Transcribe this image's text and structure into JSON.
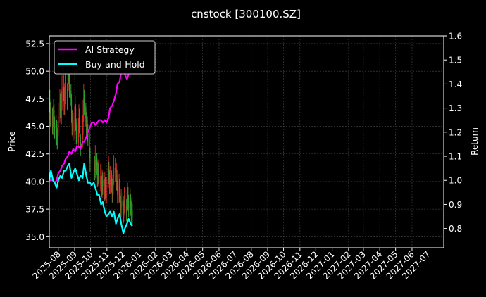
{
  "chart_data": {
    "type": "line",
    "title": "cnstock [300100.SZ]",
    "ylabel_left": "Price",
    "ylabel_right": "Return",
    "ylim_left": [
      34.0,
      53.2
    ],
    "ylim_right": [
      0.72,
      1.6
    ],
    "xlim": [
      "2025-07-15",
      "2027-07-31"
    ],
    "yticks_left": [
      "35.0",
      "37.5",
      "40.0",
      "42.5",
      "45.0",
      "47.5",
      "50.0",
      "52.5"
    ],
    "yticks_right": [
      "0.8",
      "0.9",
      "1.0",
      "1.1",
      "1.2",
      "1.3",
      "1.4",
      "1.5",
      "1.6"
    ],
    "xticks": [
      "2025-08",
      "2025-09",
      "2025-10",
      "2025-11",
      "2025-12",
      "2026-01",
      "2026-02",
      "2026-03",
      "2026-04",
      "2026-05",
      "2026-06",
      "2026-07",
      "2026-08",
      "2026-09",
      "2026-10",
      "2026-11",
      "2026-12",
      "2027-01",
      "2027-02",
      "2027-03",
      "2027-04",
      "2027-05",
      "2027-06",
      "2027-07"
    ],
    "grid": true,
    "legend_position": "top-left",
    "colors": {
      "strategy": "#ff00ff",
      "buyhold": "#00ffff",
      "candle_up": "#d62728",
      "candle_down": "#2ca02c",
      "background": "#000000",
      "grid": "#4a4a4a"
    },
    "series": [
      {
        "name": "AI Strategy",
        "axis": "right",
        "x": [
          "2025-07-15",
          "2025-07-18",
          "2025-07-22",
          "2025-07-25",
          "2025-07-29",
          "2025-08-01",
          "2025-08-05",
          "2025-08-08",
          "2025-08-12",
          "2025-08-15",
          "2025-08-19",
          "2025-08-22",
          "2025-08-26",
          "2025-08-29",
          "2025-09-02",
          "2025-09-05",
          "2025-09-09",
          "2025-09-12",
          "2025-09-16",
          "2025-09-19",
          "2025-09-23",
          "2025-09-26",
          "2025-09-30",
          "2025-10-03",
          "2025-10-07",
          "2025-10-10",
          "2025-10-14",
          "2025-10-17",
          "2025-10-21",
          "2025-10-24",
          "2025-10-28",
          "2025-10-31",
          "2025-11-04",
          "2025-11-07",
          "2025-11-11",
          "2025-11-14",
          "2025-11-18",
          "2025-11-21",
          "2025-11-25",
          "2025-11-28",
          "2025-12-02",
          "2025-12-05",
          "2025-12-09",
          "2025-12-12",
          "2025-12-16",
          "2025-12-19"
        ],
        "values": [
          1.0,
          1.0,
          1.0,
          0.99,
          1.0,
          1.03,
          1.04,
          1.06,
          1.07,
          1.09,
          1.1,
          1.12,
          1.11,
          1.13,
          1.12,
          1.14,
          1.14,
          1.13,
          1.16,
          1.16,
          1.18,
          1.2,
          1.22,
          1.24,
          1.24,
          1.23,
          1.24,
          1.25,
          1.25,
          1.24,
          1.25,
          1.24,
          1.26,
          1.3,
          1.31,
          1.33,
          1.36,
          1.4,
          1.41,
          1.45,
          1.46,
          1.44,
          1.42,
          1.44,
          1.48,
          1.53
        ]
      },
      {
        "name": "Buy-and-Hold",
        "axis": "right",
        "x": [
          "2025-07-15",
          "2025-07-18",
          "2025-07-22",
          "2025-07-25",
          "2025-07-29",
          "2025-08-01",
          "2025-08-05",
          "2025-08-08",
          "2025-08-12",
          "2025-08-15",
          "2025-08-19",
          "2025-08-22",
          "2025-08-26",
          "2025-08-29",
          "2025-09-02",
          "2025-09-05",
          "2025-09-09",
          "2025-09-12",
          "2025-09-16",
          "2025-09-19",
          "2025-09-23",
          "2025-09-26",
          "2025-09-30",
          "2025-10-03",
          "2025-10-07",
          "2025-10-10",
          "2025-10-14",
          "2025-10-17",
          "2025-10-21",
          "2025-10-24",
          "2025-10-28",
          "2025-10-31",
          "2025-11-04",
          "2025-11-07",
          "2025-11-11",
          "2025-11-14",
          "2025-11-18",
          "2025-11-21",
          "2025-11-25",
          "2025-11-28",
          "2025-12-02",
          "2025-12-05",
          "2025-12-09",
          "2025-12-12",
          "2025-12-16",
          "2025-12-19"
        ],
        "values": [
          1.0,
          1.04,
          1.0,
          0.99,
          0.97,
          1.0,
          1.02,
          1.01,
          1.04,
          1.04,
          1.06,
          1.07,
          1.01,
          1.03,
          1.05,
          1.03,
          1.0,
          1.02,
          1.01,
          1.07,
          1.02,
          0.99,
          0.99,
          0.98,
          0.99,
          0.97,
          0.94,
          0.94,
          0.9,
          0.91,
          0.87,
          0.85,
          0.86,
          0.87,
          0.85,
          0.87,
          0.82,
          0.84,
          0.86,
          0.82,
          0.78,
          0.8,
          0.82,
          0.84,
          0.82,
          0.81
        ]
      }
    ],
    "candles": {
      "axis": "left",
      "x": [
        "2025-07-15",
        "2025-07-16",
        "2025-07-17",
        "2025-07-18",
        "2025-07-21",
        "2025-07-22",
        "2025-07-23",
        "2025-07-24",
        "2025-07-25",
        "2025-07-28",
        "2025-07-29",
        "2025-07-30",
        "2025-07-31",
        "2025-08-01",
        "2025-08-04",
        "2025-08-05",
        "2025-08-06",
        "2025-08-07",
        "2025-08-08",
        "2025-08-11",
        "2025-08-12",
        "2025-08-13",
        "2025-08-14",
        "2025-08-15",
        "2025-08-18",
        "2025-08-19",
        "2025-08-20",
        "2025-08-21",
        "2025-08-22",
        "2025-08-25",
        "2025-08-26",
        "2025-08-27",
        "2025-08-28",
        "2025-08-29",
        "2025-09-01",
        "2025-09-02",
        "2025-09-03",
        "2025-09-04",
        "2025-09-05",
        "2025-09-08",
        "2025-09-09",
        "2025-09-10",
        "2025-09-11",
        "2025-09-12",
        "2025-09-15",
        "2025-09-16",
        "2025-09-17",
        "2025-09-18",
        "2025-09-19",
        "2025-09-22",
        "2025-09-23",
        "2025-09-24",
        "2025-09-25",
        "2025-09-26",
        "2025-09-29",
        "2025-09-30",
        "2025-10-09",
        "2025-10-10",
        "2025-10-13",
        "2025-10-14",
        "2025-10-15",
        "2025-10-16",
        "2025-10-17",
        "2025-10-20",
        "2025-10-21",
        "2025-10-22",
        "2025-10-23",
        "2025-10-24",
        "2025-10-27",
        "2025-10-28",
        "2025-10-29",
        "2025-10-30",
        "2025-10-31",
        "2025-11-03",
        "2025-11-04",
        "2025-11-05",
        "2025-11-06",
        "2025-11-07",
        "2025-11-10",
        "2025-11-11",
        "2025-11-12",
        "2025-11-13",
        "2025-11-14",
        "2025-11-17",
        "2025-11-18",
        "2025-11-19",
        "2025-11-20",
        "2025-11-21",
        "2025-11-24",
        "2025-11-25",
        "2025-11-26",
        "2025-11-27",
        "2025-11-28",
        "2025-12-01",
        "2025-12-02",
        "2025-12-03",
        "2025-12-04",
        "2025-12-05",
        "2025-12-08",
        "2025-12-09",
        "2025-12-10",
        "2025-12-11",
        "2025-12-12",
        "2025-12-15",
        "2025-12-16",
        "2025-12-17",
        "2025-12-18",
        "2025-12-19"
      ],
      "open": [
        46.2,
        47.5,
        46.8,
        45.4,
        46.1,
        44.9,
        45.8,
        46.5,
        45.2,
        44.6,
        45.1,
        44.0,
        43.6,
        44.8,
        46.0,
        47.3,
        46.4,
        45.8,
        47.1,
        48.6,
        47.9,
        46.7,
        47.8,
        49.1,
        48.4,
        47.2,
        48.9,
        50.1,
        49.4,
        48.2,
        47.5,
        46.1,
        44.9,
        45.6,
        44.4,
        45.8,
        46.7,
        45.3,
        44.1,
        43.5,
        44.8,
        45.9,
        45.1,
        44.0,
        42.9,
        43.8,
        45.0,
        46.2,
        47.6,
        46.8,
        45.7,
        44.9,
        45.6,
        44.3,
        43.9,
        42.8,
        41.6,
        40.9,
        42.1,
        41.3,
        40.2,
        41.0,
        40.5,
        39.8,
        40.6,
        39.9,
        39.2,
        40.1,
        39.5,
        38.9,
        39.8,
        39.1,
        38.6,
        39.4,
        40.2,
        41.1,
        40.5,
        39.6,
        40.3,
        39.7,
        38.8,
        39.5,
        40.4,
        41.3,
        40.7,
        39.9,
        40.6,
        39.8,
        38.7,
        39.6,
        38.9,
        38.1,
        37.4,
        38.3,
        37.7,
        36.9,
        37.6,
        38.4,
        37.8,
        37.1,
        38.0,
        38.8,
        38.2,
        37.5,
        38.3,
        37.6,
        36.9,
        37.4
      ],
      "close": [
        47.3,
        46.9,
        45.6,
        46.0,
        45.0,
        45.7,
        46.4,
        45.3,
        44.7,
        45.0,
        44.1,
        43.7,
        44.7,
        45.9,
        47.2,
        46.5,
        45.9,
        47.0,
        48.5,
        48.0,
        46.8,
        47.7,
        49.0,
        48.5,
        47.3,
        48.8,
        50.0,
        49.5,
        48.3,
        47.6,
        46.2,
        45.0,
        45.5,
        44.5,
        45.7,
        46.6,
        45.4,
        44.2,
        43.6,
        44.7,
        45.8,
        45.2,
        44.1,
        43.0,
        43.7,
        44.9,
        46.1,
        47.5,
        46.9,
        45.8,
        45.0,
        45.5,
        44.4,
        44.0,
        42.9,
        41.7,
        41.0,
        42.0,
        41.4,
        40.3,
        40.9,
        40.6,
        39.9,
        40.5,
        40.0,
        39.3,
        40.0,
        39.6,
        39.0,
        39.7,
        39.2,
        38.7,
        39.3,
        40.1,
        41.0,
        40.6,
        39.7,
        40.2,
        39.8,
        38.9,
        39.4,
        40.3,
        41.2,
        40.8,
        40.0,
        40.5,
        39.9,
        38.8,
        39.5,
        39.0,
        38.2,
        37.5,
        38.2,
        37.8,
        37.0,
        37.5,
        38.3,
        37.9,
        37.2,
        37.9,
        38.7,
        38.3,
        37.6,
        38.2,
        37.7,
        37.0,
        37.3,
        36.8
      ],
      "high": [
        48.6,
        48.3,
        47.2,
        47.1,
        46.7,
        46.8,
        47.5,
        47.0,
        45.9,
        46.0,
        45.6,
        44.8,
        45.5,
        47.1,
        48.4,
        48.0,
        47.0,
        48.2,
        49.6,
        49.7,
        48.6,
        48.9,
        50.2,
        50.0,
        48.9,
        49.9,
        51.3,
        51.0,
        49.8,
        48.8,
        47.9,
        46.5,
        46.4,
        46.2,
        46.8,
        47.8,
        47.0,
        45.7,
        44.9,
        45.8,
        47.0,
        46.6,
        45.4,
        44.3,
        44.9,
        46.0,
        47.4,
        48.8,
        48.3,
        47.1,
        46.3,
        46.6,
        45.9,
        45.2,
        44.4,
        43.1,
        42.3,
        43.3,
        42.6,
        41.8,
        42.0,
        41.7,
        41.1,
        41.6,
        41.2,
        40.5,
        41.1,
        40.8,
        40.2,
        40.9,
        40.4,
        39.9,
        40.4,
        41.3,
        42.3,
        41.8,
        41.0,
        41.4,
        41.0,
        40.2,
        40.6,
        41.5,
        42.4,
        42.1,
        41.2,
        41.7,
        41.1,
        40.1,
        40.7,
        40.2,
        39.4,
        38.7,
        39.3,
        39.0,
        38.3,
        38.7,
        39.5,
        39.1,
        38.4,
        39.1,
        39.9,
        39.5,
        38.8,
        39.4,
        38.9,
        38.2,
        38.5,
        38.0
      ],
      "low": [
        45.1,
        46.3,
        45.0,
        44.7,
        44.3,
        44.2,
        45.0,
        44.6,
        43.9,
        43.8,
        43.3,
        42.9,
        43.0,
        44.1,
        45.3,
        45.8,
        45.0,
        45.2,
        46.4,
        47.3,
        46.0,
        46.0,
        47.0,
        47.9,
        46.5,
        46.4,
        48.2,
        48.8,
        47.6,
        46.9,
        45.3,
        44.2,
        44.1,
        43.7,
        43.8,
        45.0,
        44.6,
        43.4,
        42.9,
        43.0,
        44.0,
        44.4,
        43.3,
        42.3,
        42.0,
        43.1,
        44.2,
        45.4,
        46.0,
        45.0,
        44.2,
        44.1,
        43.6,
        43.2,
        42.1,
        40.9,
        40.1,
        40.3,
        40.6,
        39.5,
        39.6,
        39.8,
        39.1,
        39.1,
        39.2,
        38.6,
        38.5,
        38.8,
        38.2,
        38.3,
        38.4,
        37.9,
        38.0,
        38.7,
        39.4,
        39.8,
        38.9,
        38.9,
        39.0,
        38.1,
        38.1,
        38.8,
        39.7,
        40.0,
        39.2,
        39.2,
        39.1,
        38.0,
        38.1,
        38.1,
        37.4,
        36.7,
        36.8,
        37.0,
        36.2,
        36.3,
        37.2,
        37.0,
        36.4,
        36.6,
        37.3,
        37.4,
        36.8,
        36.9,
        36.9,
        36.2,
        36.3,
        36.0
      ]
    }
  }
}
